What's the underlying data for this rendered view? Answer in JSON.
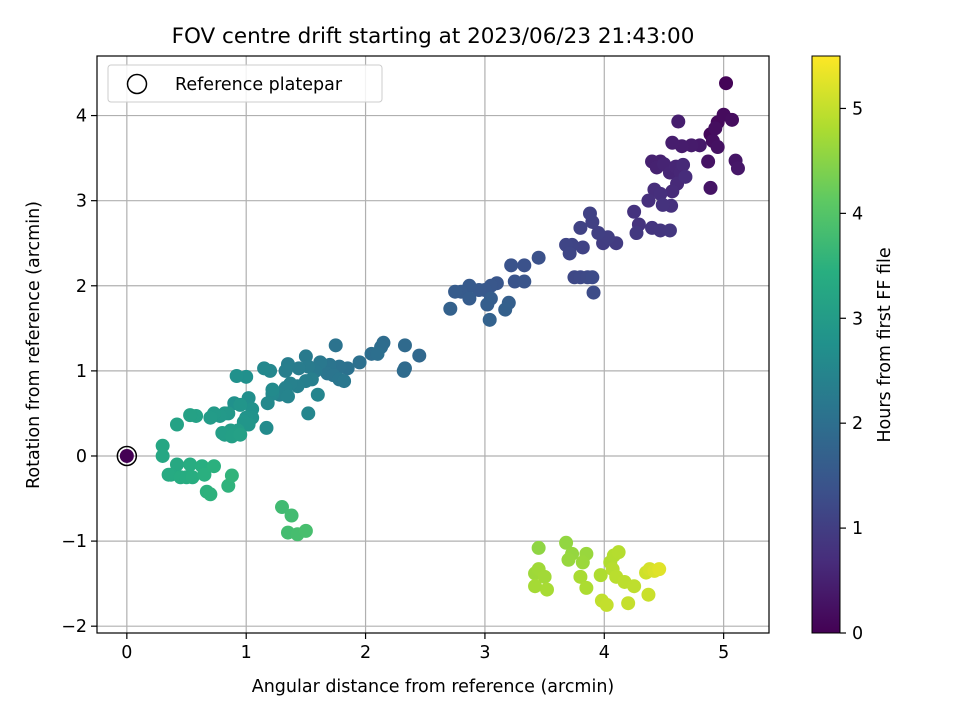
{
  "chart_data": {
    "type": "scatter",
    "title": "FOV centre drift starting at 2023/06/23 21:43:00",
    "xlabel": "Angular distance from reference (arcmin)",
    "ylabel": "Rotation from reference (arcmin)",
    "xlim": [
      -0.25,
      5.38
    ],
    "ylim": [
      -2.08,
      4.7
    ],
    "xticks": [
      0,
      1,
      2,
      3,
      4,
      5
    ],
    "yticks": [
      -2,
      -1,
      0,
      1,
      2,
      3,
      4
    ],
    "xtick_labels": [
      "0",
      "1",
      "2",
      "3",
      "4",
      "5"
    ],
    "ytick_labels": [
      "−2",
      "−1",
      "0",
      "1",
      "2",
      "3",
      "4"
    ],
    "grid": true,
    "legend": {
      "placement": "upper-left",
      "entries": [
        "Reference platepar"
      ]
    },
    "reference_point": {
      "x": 0,
      "y": 0,
      "label": "Reference platepar"
    },
    "colorbar": {
      "label": "Hours from first FF file",
      "colormap": "viridis",
      "range": [
        0,
        5.5
      ],
      "ticks": [
        0,
        1,
        2,
        3,
        4,
        5
      ],
      "tick_labels": [
        "0",
        "1",
        "2",
        "3",
        "4",
        "5"
      ]
    },
    "points": [
      {
        "x": 0,
        "y": 0,
        "c": 0
      },
      {
        "x": 5.02,
        "y": 4.38,
        "c": 0.05
      },
      {
        "x": 4.89,
        "y": 3.78,
        "c": 0.1
      },
      {
        "x": 4.95,
        "y": 3.92,
        "c": 0.12
      },
      {
        "x": 5.0,
        "y": 4.01,
        "c": 0.15
      },
      {
        "x": 5.07,
        "y": 3.95,
        "c": 0.18
      },
      {
        "x": 4.93,
        "y": 3.85,
        "c": 0.2
      },
      {
        "x": 4.91,
        "y": 3.7,
        "c": 0.22
      },
      {
        "x": 4.95,
        "y": 3.63,
        "c": 0.25
      },
      {
        "x": 4.87,
        "y": 3.46,
        "c": 0.28
      },
      {
        "x": 4.89,
        "y": 3.15,
        "c": 0.3
      },
      {
        "x": 5.1,
        "y": 3.47,
        "c": 0.32
      },
      {
        "x": 5.12,
        "y": 3.38,
        "c": 0.35
      },
      {
        "x": 4.8,
        "y": 3.65,
        "c": 0.38
      },
      {
        "x": 4.73,
        "y": 3.65,
        "c": 0.4
      },
      {
        "x": 4.65,
        "y": 3.64,
        "c": 0.42
      },
      {
        "x": 4.57,
        "y": 3.68,
        "c": 0.44
      },
      {
        "x": 4.62,
        "y": 3.93,
        "c": 0.46
      },
      {
        "x": 4.47,
        "y": 3.46,
        "c": 0.48
      },
      {
        "x": 4.4,
        "y": 3.46,
        "c": 0.5
      },
      {
        "x": 4.44,
        "y": 3.39,
        "c": 0.52
      },
      {
        "x": 4.5,
        "y": 3.43,
        "c": 0.54
      },
      {
        "x": 4.55,
        "y": 3.33,
        "c": 0.56
      },
      {
        "x": 4.6,
        "y": 3.4,
        "c": 0.58
      },
      {
        "x": 4.64,
        "y": 3.33,
        "c": 0.6
      },
      {
        "x": 4.66,
        "y": 3.42,
        "c": 0.62
      },
      {
        "x": 4.61,
        "y": 3.2,
        "c": 0.64
      },
      {
        "x": 4.57,
        "y": 3.11,
        "c": 0.66
      },
      {
        "x": 4.68,
        "y": 3.28,
        "c": 0.68
      },
      {
        "x": 4.42,
        "y": 3.13,
        "c": 0.7
      },
      {
        "x": 4.47,
        "y": 3.08,
        "c": 0.72
      },
      {
        "x": 4.37,
        "y": 3.0,
        "c": 0.74
      },
      {
        "x": 4.56,
        "y": 2.94,
        "c": 0.76
      },
      {
        "x": 4.49,
        "y": 2.95,
        "c": 0.78
      },
      {
        "x": 4.25,
        "y": 2.87,
        "c": 0.8
      },
      {
        "x": 4.29,
        "y": 2.72,
        "c": 0.82
      },
      {
        "x": 4.4,
        "y": 2.68,
        "c": 0.84
      },
      {
        "x": 4.47,
        "y": 2.65,
        "c": 0.86
      },
      {
        "x": 4.55,
        "y": 2.65,
        "c": 0.88
      },
      {
        "x": 4.27,
        "y": 2.62,
        "c": 0.9
      },
      {
        "x": 4.1,
        "y": 2.5,
        "c": 0.95
      },
      {
        "x": 3.99,
        "y": 2.5,
        "c": 0.98
      },
      {
        "x": 4.03,
        "y": 2.57,
        "c": 1.0
      },
      {
        "x": 3.95,
        "y": 2.62,
        "c": 1.02
      },
      {
        "x": 3.9,
        "y": 2.75,
        "c": 1.04
      },
      {
        "x": 3.88,
        "y": 2.85,
        "c": 1.06
      },
      {
        "x": 3.8,
        "y": 2.68,
        "c": 1.08
      },
      {
        "x": 3.82,
        "y": 2.45,
        "c": 1.1
      },
      {
        "x": 3.73,
        "y": 2.48,
        "c": 1.12
      },
      {
        "x": 3.68,
        "y": 2.48,
        "c": 1.14
      },
      {
        "x": 3.71,
        "y": 2.38,
        "c": 1.16
      },
      {
        "x": 3.75,
        "y": 2.1,
        "c": 1.18
      },
      {
        "x": 3.8,
        "y": 2.1,
        "c": 1.2
      },
      {
        "x": 3.86,
        "y": 2.1,
        "c": 1.22
      },
      {
        "x": 3.9,
        "y": 2.1,
        "c": 1.24
      },
      {
        "x": 3.91,
        "y": 1.92,
        "c": 1.26
      },
      {
        "x": 3.45,
        "y": 2.33,
        "c": 1.35
      },
      {
        "x": 3.33,
        "y": 2.24,
        "c": 1.38
      },
      {
        "x": 3.22,
        "y": 2.24,
        "c": 1.4
      },
      {
        "x": 3.25,
        "y": 2.05,
        "c": 1.42
      },
      {
        "x": 3.33,
        "y": 2.05,
        "c": 1.44
      },
      {
        "x": 3.1,
        "y": 2.03,
        "c": 1.46
      },
      {
        "x": 3.05,
        "y": 2.0,
        "c": 1.48
      },
      {
        "x": 3.0,
        "y": 1.95,
        "c": 1.5
      },
      {
        "x": 2.95,
        "y": 1.95,
        "c": 1.52
      },
      {
        "x": 2.87,
        "y": 2.0,
        "c": 1.54
      },
      {
        "x": 2.8,
        "y": 1.93,
        "c": 1.56
      },
      {
        "x": 2.75,
        "y": 1.93,
        "c": 1.58
      },
      {
        "x": 2.87,
        "y": 1.85,
        "c": 1.6
      },
      {
        "x": 3.05,
        "y": 1.85,
        "c": 1.62
      },
      {
        "x": 3.02,
        "y": 1.78,
        "c": 1.64
      },
      {
        "x": 3.2,
        "y": 1.8,
        "c": 1.66
      },
      {
        "x": 3.17,
        "y": 1.72,
        "c": 1.68
      },
      {
        "x": 2.71,
        "y": 1.73,
        "c": 1.7
      },
      {
        "x": 3.04,
        "y": 1.6,
        "c": 1.72
      },
      {
        "x": 2.45,
        "y": 1.18,
        "c": 1.85
      },
      {
        "x": 2.33,
        "y": 1.3,
        "c": 1.88
      },
      {
        "x": 2.33,
        "y": 1.03,
        "c": 1.9
      },
      {
        "x": 2.32,
        "y": 1.0,
        "c": 1.92
      },
      {
        "x": 2.15,
        "y": 1.33,
        "c": 1.94
      },
      {
        "x": 2.13,
        "y": 1.28,
        "c": 1.96
      },
      {
        "x": 2.05,
        "y": 1.2,
        "c": 1.98
      },
      {
        "x": 2.1,
        "y": 1.2,
        "c": 2.0
      },
      {
        "x": 1.95,
        "y": 1.1,
        "c": 2.02
      },
      {
        "x": 1.85,
        "y": 1.03,
        "c": 2.04
      },
      {
        "x": 1.78,
        "y": 1.05,
        "c": 2.06
      },
      {
        "x": 1.75,
        "y": 1.3,
        "c": 2.08
      },
      {
        "x": 1.7,
        "y": 1.07,
        "c": 2.1
      },
      {
        "x": 1.68,
        "y": 0.97,
        "c": 2.12
      },
      {
        "x": 1.73,
        "y": 0.95,
        "c": 2.14
      },
      {
        "x": 1.78,
        "y": 0.9,
        "c": 2.16
      },
      {
        "x": 1.82,
        "y": 0.88,
        "c": 2.18
      },
      {
        "x": 1.62,
        "y": 1.1,
        "c": 2.2
      },
      {
        "x": 1.58,
        "y": 1.0,
        "c": 2.22
      },
      {
        "x": 1.5,
        "y": 1.17,
        "c": 2.24
      },
      {
        "x": 1.52,
        "y": 1.05,
        "c": 2.26
      },
      {
        "x": 1.44,
        "y": 1.03,
        "c": 2.28
      },
      {
        "x": 1.35,
        "y": 1.08,
        "c": 2.3
      },
      {
        "x": 1.33,
        "y": 1.0,
        "c": 2.32
      },
      {
        "x": 1.55,
        "y": 0.9,
        "c": 2.34
      },
      {
        "x": 1.5,
        "y": 0.88,
        "c": 2.36
      },
      {
        "x": 1.43,
        "y": 0.82,
        "c": 2.38
      },
      {
        "x": 1.37,
        "y": 0.85,
        "c": 2.4
      },
      {
        "x": 1.33,
        "y": 0.8,
        "c": 2.42
      },
      {
        "x": 1.28,
        "y": 0.72,
        "c": 2.44
      },
      {
        "x": 1.35,
        "y": 0.7,
        "c": 2.46
      },
      {
        "x": 1.6,
        "y": 0.72,
        "c": 2.48
      },
      {
        "x": 1.52,
        "y": 0.5,
        "c": 2.5
      },
      {
        "x": 1.2,
        "y": 1.0,
        "c": 2.52
      },
      {
        "x": 1.22,
        "y": 0.73,
        "c": 2.54
      },
      {
        "x": 1.15,
        "y": 1.03,
        "c": 2.56
      },
      {
        "x": 1.18,
        "y": 0.62,
        "c": 2.58
      },
      {
        "x": 1.22,
        "y": 0.78,
        "c": 2.6
      },
      {
        "x": 1.17,
        "y": 0.33,
        "c": 2.62
      },
      {
        "x": 1.02,
        "y": 0.68,
        "c": 2.7
      },
      {
        "x": 1.0,
        "y": 0.93,
        "c": 2.72
      },
      {
        "x": 0.92,
        "y": 0.94,
        "c": 2.74
      },
      {
        "x": 0.9,
        "y": 0.62,
        "c": 2.76
      },
      {
        "x": 1.05,
        "y": 0.55,
        "c": 2.78
      },
      {
        "x": 1.05,
        "y": 0.45,
        "c": 2.8
      },
      {
        "x": 1.0,
        "y": 0.45,
        "c": 2.82
      },
      {
        "x": 0.95,
        "y": 0.6,
        "c": 2.84
      },
      {
        "x": 0.98,
        "y": 0.4,
        "c": 2.86
      },
      {
        "x": 1.02,
        "y": 0.37,
        "c": 2.88
      },
      {
        "x": 0.85,
        "y": 0.5,
        "c": 2.9
      },
      {
        "x": 0.82,
        "y": 0.5,
        "c": 2.92
      },
      {
        "x": 0.78,
        "y": 0.47,
        "c": 2.94
      },
      {
        "x": 0.73,
        "y": 0.5,
        "c": 2.96
      },
      {
        "x": 0.7,
        "y": 0.45,
        "c": 2.98
      },
      {
        "x": 0.93,
        "y": 0.3,
        "c": 3.0
      },
      {
        "x": 0.87,
        "y": 0.3,
        "c": 3.02
      },
      {
        "x": 0.82,
        "y": 0.25,
        "c": 3.04
      },
      {
        "x": 0.8,
        "y": 0.27,
        "c": 3.06
      },
      {
        "x": 0.88,
        "y": 0.23,
        "c": 3.08
      },
      {
        "x": 0.95,
        "y": 0.25,
        "c": 3.1
      },
      {
        "x": 0.58,
        "y": 0.47,
        "c": 3.12
      },
      {
        "x": 0.53,
        "y": 0.48,
        "c": 3.14
      },
      {
        "x": 0.42,
        "y": 0.37,
        "c": 3.16
      },
      {
        "x": 0.3,
        "y": 0.12,
        "c": 3.25
      },
      {
        "x": 0.3,
        "y": 0.0,
        "c": 3.28
      },
      {
        "x": 0.42,
        "y": -0.1,
        "c": 3.3
      },
      {
        "x": 0.37,
        "y": -0.22,
        "c": 3.32
      },
      {
        "x": 0.35,
        "y": -0.22,
        "c": 3.34
      },
      {
        "x": 0.45,
        "y": -0.25,
        "c": 3.36
      },
      {
        "x": 0.5,
        "y": -0.25,
        "c": 3.38
      },
      {
        "x": 0.53,
        "y": -0.1,
        "c": 3.4
      },
      {
        "x": 0.55,
        "y": -0.25,
        "c": 3.42
      },
      {
        "x": 0.63,
        "y": -0.12,
        "c": 3.44
      },
      {
        "x": 0.65,
        "y": -0.22,
        "c": 3.46
      },
      {
        "x": 0.73,
        "y": -0.12,
        "c": 3.48
      },
      {
        "x": 0.67,
        "y": -0.42,
        "c": 3.5
      },
      {
        "x": 0.7,
        "y": -0.45,
        "c": 3.52
      },
      {
        "x": 0.85,
        "y": -0.35,
        "c": 3.54
      },
      {
        "x": 0.88,
        "y": -0.23,
        "c": 3.56
      },
      {
        "x": 1.3,
        "y": -0.6,
        "c": 3.75
      },
      {
        "x": 1.38,
        "y": -0.7,
        "c": 3.78
      },
      {
        "x": 1.35,
        "y": -0.9,
        "c": 3.8
      },
      {
        "x": 1.43,
        "y": -0.92,
        "c": 3.82
      },
      {
        "x": 1.5,
        "y": -0.88,
        "c": 3.84
      },
      {
        "x": 3.45,
        "y": -1.08,
        "c": 4.55
      },
      {
        "x": 3.68,
        "y": -1.02,
        "c": 4.58
      },
      {
        "x": 3.73,
        "y": -1.15,
        "c": 4.6
      },
      {
        "x": 3.7,
        "y": -1.22,
        "c": 4.62
      },
      {
        "x": 3.85,
        "y": -1.15,
        "c": 4.64
      },
      {
        "x": 3.82,
        "y": -1.25,
        "c": 4.66
      },
      {
        "x": 3.42,
        "y": -1.38,
        "c": 4.68
      },
      {
        "x": 3.45,
        "y": -1.33,
        "c": 4.7
      },
      {
        "x": 3.5,
        "y": -1.42,
        "c": 4.72
      },
      {
        "x": 3.42,
        "y": -1.53,
        "c": 4.74
      },
      {
        "x": 3.52,
        "y": -1.57,
        "c": 4.76
      },
      {
        "x": 3.8,
        "y": -1.42,
        "c": 4.78
      },
      {
        "x": 3.85,
        "y": -1.55,
        "c": 4.8
      },
      {
        "x": 3.97,
        "y": -1.4,
        "c": 4.82
      },
      {
        "x": 4.05,
        "y": -1.25,
        "c": 4.84
      },
      {
        "x": 4.08,
        "y": -1.17,
        "c": 4.86
      },
      {
        "x": 4.12,
        "y": -1.13,
        "c": 4.88
      },
      {
        "x": 4.07,
        "y": -1.33,
        "c": 4.9
      },
      {
        "x": 4.1,
        "y": -1.42,
        "c": 4.92
      },
      {
        "x": 4.17,
        "y": -1.48,
        "c": 4.94
      },
      {
        "x": 4.25,
        "y": -1.53,
        "c": 4.96
      },
      {
        "x": 3.98,
        "y": -1.7,
        "c": 4.98
      },
      {
        "x": 4.02,
        "y": -1.75,
        "c": 5.0
      },
      {
        "x": 4.2,
        "y": -1.73,
        "c": 5.02
      },
      {
        "x": 4.37,
        "y": -1.63,
        "c": 5.05
      },
      {
        "x": 4.35,
        "y": -1.37,
        "c": 5.1
      },
      {
        "x": 4.38,
        "y": -1.33,
        "c": 5.15
      },
      {
        "x": 4.42,
        "y": -1.35,
        "c": 5.2
      },
      {
        "x": 4.46,
        "y": -1.33,
        "c": 5.25
      }
    ]
  }
}
